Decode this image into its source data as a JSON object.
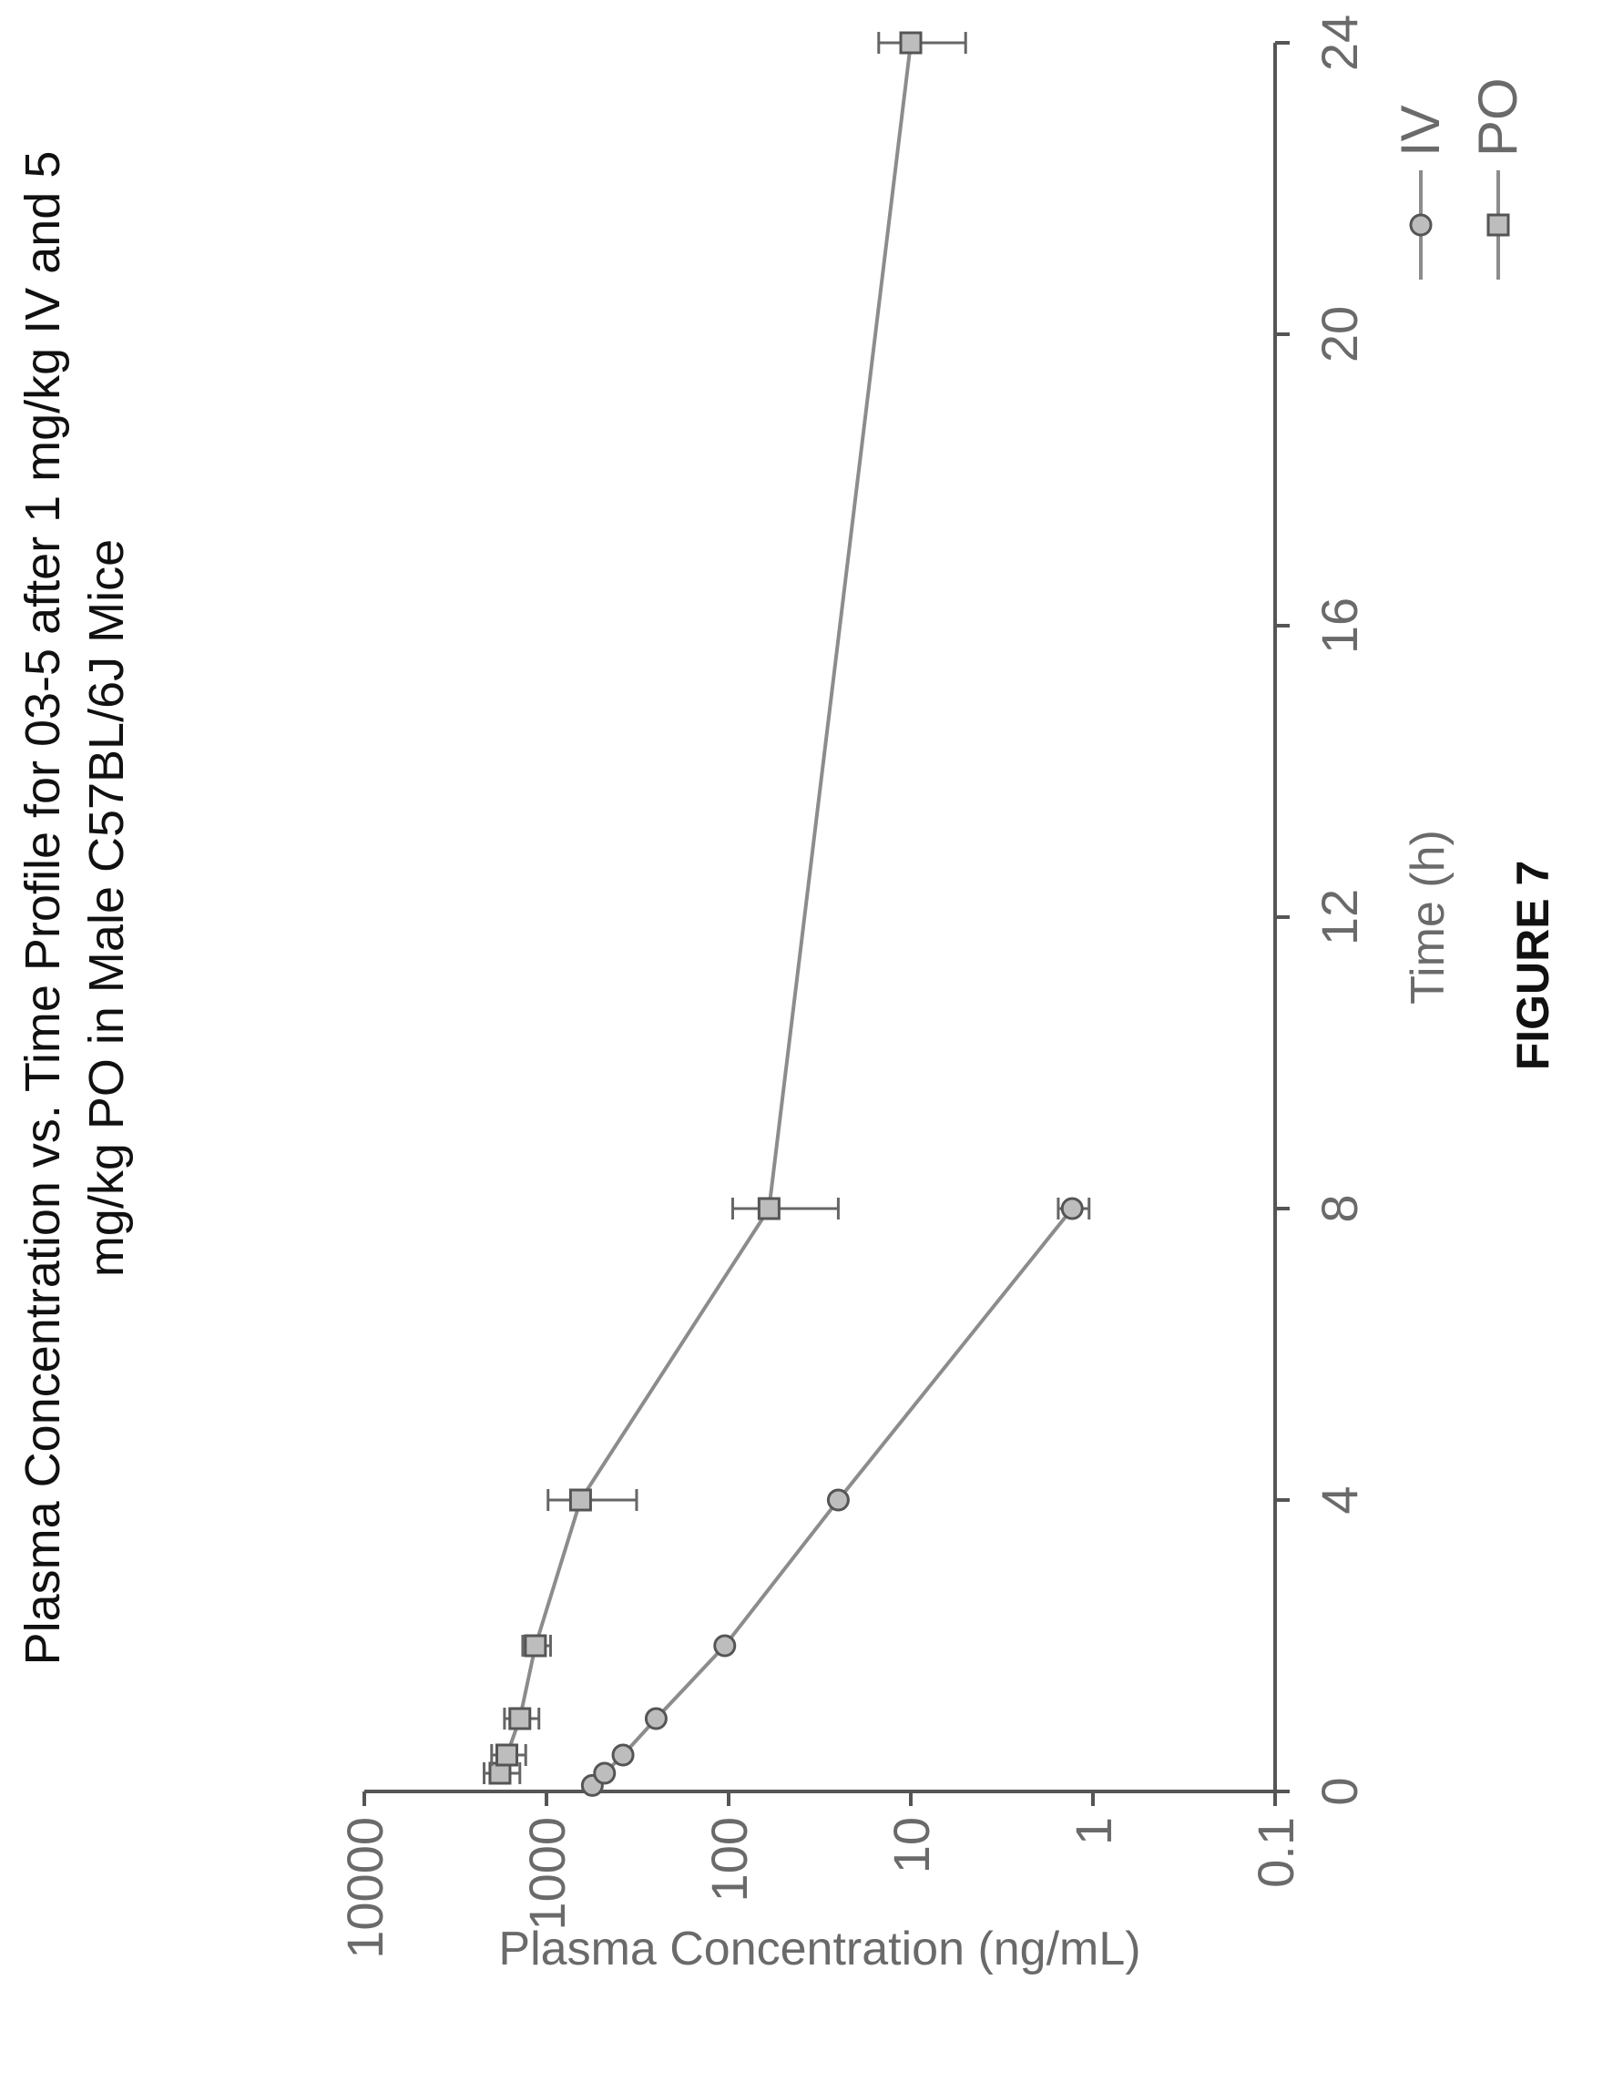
{
  "figure_label": "FIGURE 7",
  "chart_data": {
    "type": "line",
    "title": "Plasma Concentration vs. Time Profile for 03-5 after 1 mg/kg IV and 5 mg/kg PO in Male C57BL/6J Mice",
    "title_lines": [
      "Plasma Concentration vs. Time Profile for 03-5 after 1 mg/kg IV and 5",
      "mg/kg PO in Male C57BL/6J Mice"
    ],
    "xlabel": "Time (h)",
    "ylabel": "Plasma Concentration (ng/mL)",
    "x_ticks": [
      0,
      4,
      8,
      12,
      16,
      20,
      24
    ],
    "x_tick_labels": [
      "0",
      "4",
      "8",
      "12",
      "16",
      "20",
      "24"
    ],
    "xlim": [
      0,
      24
    ],
    "y_scale": "log",
    "ylim": [
      0.1,
      10000
    ],
    "y_ticks": [
      0.1,
      1,
      10,
      100,
      1000,
      10000
    ],
    "y_tick_labels": [
      "0.1",
      "1",
      "10",
      "100",
      "1000",
      "10000"
    ],
    "grid": false,
    "legend_position": "top-right",
    "orientation": "rotated 90° counter-clockwise on page",
    "series": [
      {
        "name": "IV",
        "marker": "circle",
        "x": [
          0.083,
          0.25,
          0.5,
          1,
          2,
          4,
          8
        ],
        "y": [
          560,
          480,
          380,
          250,
          105,
          25,
          1.3
        ],
        "error": [
          0,
          0,
          0,
          0,
          0,
          0,
          0.25
        ]
      },
      {
        "name": "PO",
        "marker": "square",
        "x": [
          0.25,
          0.5,
          1,
          2,
          4,
          8,
          24
        ],
        "y": [
          1800,
          1650,
          1400,
          1150,
          650,
          60,
          10
        ],
        "error": [
          400,
          350,
          300,
          200,
          330,
          35,
          5
        ]
      }
    ]
  }
}
